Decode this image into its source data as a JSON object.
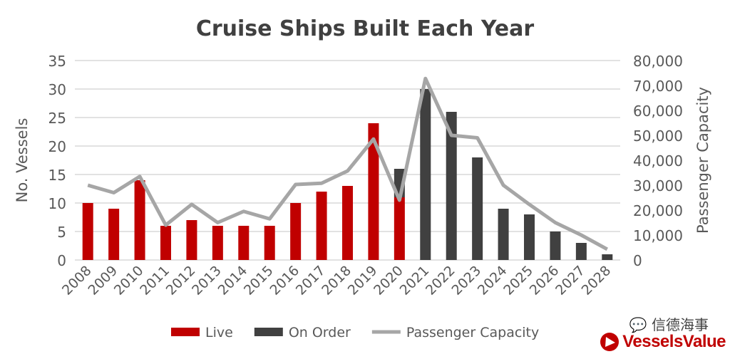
{
  "chart_data": {
    "type": "bar",
    "title": "Cruise Ships Built Each Year",
    "ylabel": "No. Vessels",
    "y2label": "Passenger Capacity",
    "ylim": [
      0,
      35
    ],
    "y2lim": [
      0,
      80000
    ],
    "yticks": [
      "0",
      "5",
      "10",
      "15",
      "20",
      "25",
      "30",
      "35"
    ],
    "y2ticks": [
      "0",
      "10,000",
      "20,000",
      "30,000",
      "40,000",
      "50,000",
      "60,000",
      "70,000",
      "80,000"
    ],
    "grid": true,
    "legend_placement": "bottom",
    "categories": [
      "2008",
      "2009",
      "2010",
      "2011",
      "2012",
      "2013",
      "2014",
      "2015",
      "2016",
      "2017",
      "2018",
      "2019",
      "2020",
      "2021",
      "2022",
      "2023",
      "2024",
      "2025",
      "2026",
      "2027",
      "2028"
    ],
    "series": [
      {
        "name": "Live",
        "type": "bar",
        "stacked": true,
        "color": "#c00000",
        "values": [
          10,
          9,
          14,
          6,
          7,
          6,
          6,
          6,
          10,
          12,
          13,
          24,
          11,
          0,
          0,
          0,
          0,
          0,
          0,
          0,
          0
        ]
      },
      {
        "name": "On Order",
        "type": "bar",
        "stacked": true,
        "color": "#404040",
        "values": [
          0,
          0,
          0,
          0,
          0,
          0,
          0,
          0,
          0,
          0,
          0,
          0,
          5,
          30,
          26,
          18,
          9,
          8,
          5,
          3,
          1
        ]
      },
      {
        "name": "Passenger Capacity",
        "type": "line",
        "axis": "right",
        "color": "#a6a6a6",
        "values": [
          30000,
          27000,
          33500,
          14000,
          22300,
          15000,
          19500,
          16500,
          30300,
          30800,
          35700,
          48500,
          24000,
          72800,
          50000,
          49000,
          30000,
          22300,
          15000,
          10000,
          4300
        ]
      }
    ]
  },
  "watermark": {
    "text": "信德海事",
    "icon": "wechat-icon"
  },
  "logo": {
    "text": "VesselsValue",
    "icon": "vesselsvalue-triangle-logo"
  }
}
